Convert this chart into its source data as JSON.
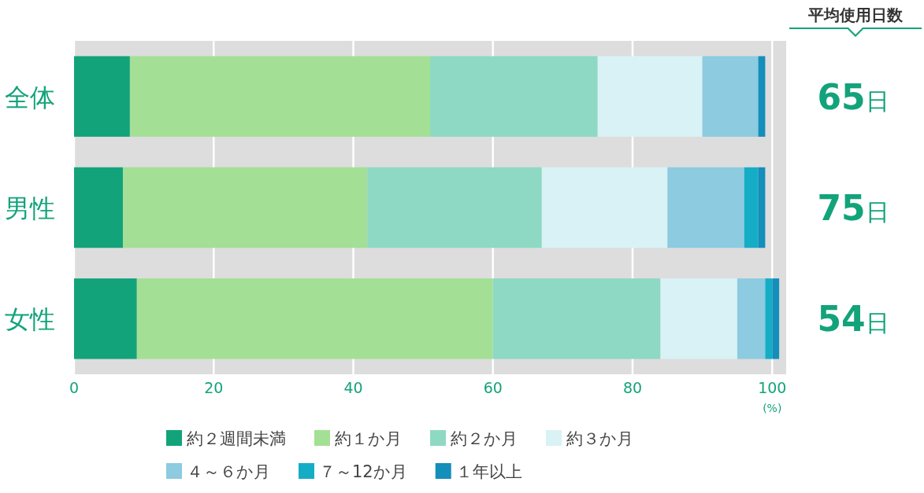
{
  "chart_data": {
    "type": "bar",
    "orientation": "horizontal",
    "stacked": true,
    "categories": [
      "全体",
      "男性",
      "女性"
    ],
    "series": [
      {
        "name": "約２週間未満",
        "color": "#13a37a",
        "values": [
          8,
          7,
          9
        ]
      },
      {
        "name": "約１か月",
        "color": "#a3e095",
        "values": [
          43,
          35,
          51
        ]
      },
      {
        "name": "約２か月",
        "color": "#8ed9c4",
        "values": [
          24,
          25,
          24
        ]
      },
      {
        "name": "約３か月",
        "color": "#d9f2f5",
        "values": [
          15,
          18,
          11
        ]
      },
      {
        "name": "４～６か月",
        "color": "#8ccbe0",
        "values": [
          8,
          11,
          4
        ]
      },
      {
        "name": "７～12か月",
        "color": "#15adc6",
        "values": [
          0,
          2,
          1
        ]
      },
      {
        "name": "１年以上",
        "color": "#148eba",
        "values": [
          1,
          1,
          1
        ]
      }
    ],
    "xlim": [
      0,
      102
    ],
    "xticks": [
      0,
      20,
      40,
      60,
      80,
      100
    ],
    "grid": "x",
    "legend": "bottom",
    "annotations": [
      "平均使用日数",
      "65日",
      "75日",
      "54日",
      "(%)"
    ]
  }
}
